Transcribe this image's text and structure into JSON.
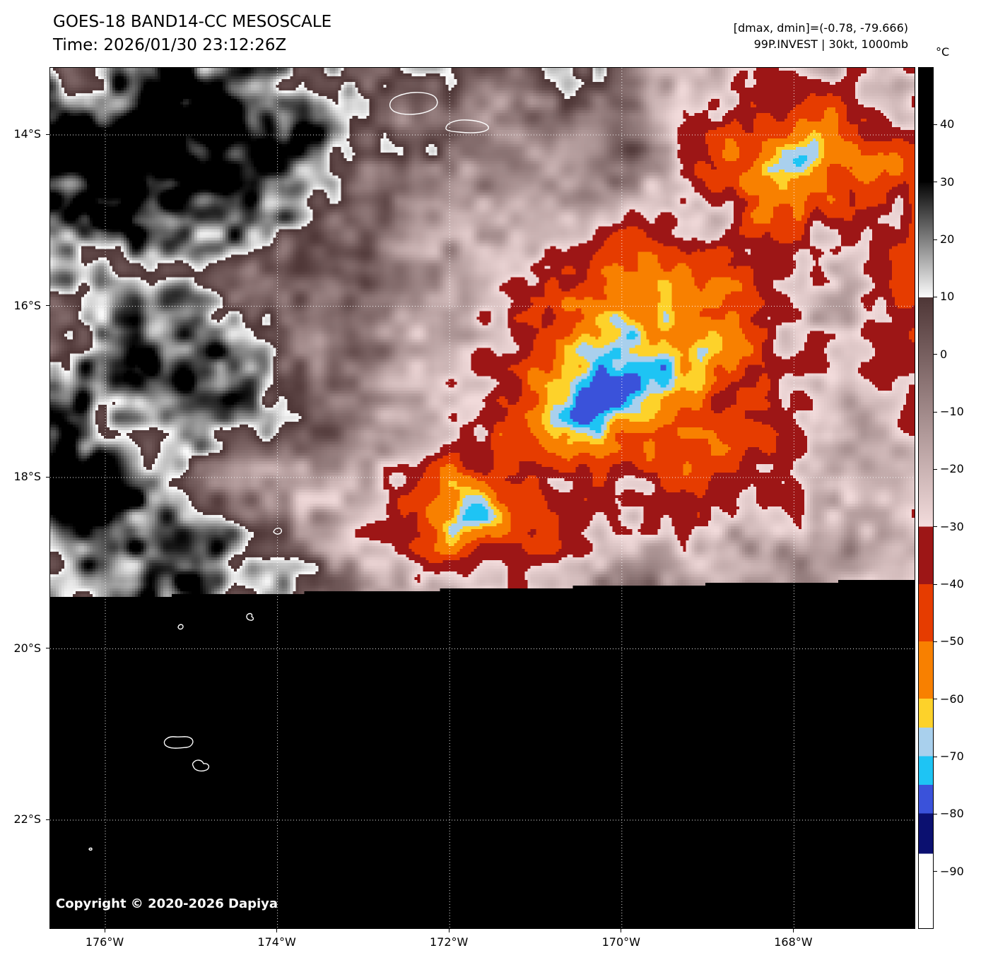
{
  "header": {
    "title": "GOES-18 BAND14-CC MESOSCALE",
    "time_line": "Time: 2026/01/30 23:12:26Z",
    "dmax_dmin": "[dmax, dmin]=(-0.78, -79.666)",
    "storm_info": "99P.INVEST | 30kt, 1000mb"
  },
  "map": {
    "copyright": "Copyright © 2020-2026 Dapiya",
    "lat_ticks": [
      {
        "label": "14°S",
        "deg": 14
      },
      {
        "label": "16°S",
        "deg": 16
      },
      {
        "label": "18°S",
        "deg": 18
      },
      {
        "label": "20°S",
        "deg": 20
      },
      {
        "label": "22°S",
        "deg": 22
      }
    ],
    "lon_ticks": [
      {
        "label": "176°W",
        "deg": 176
      },
      {
        "label": "174°W",
        "deg": 174
      },
      {
        "label": "172°W",
        "deg": 172
      },
      {
        "label": "170°W",
        "deg": 170
      },
      {
        "label": "168°W",
        "deg": 168
      }
    ]
  },
  "colorbar": {
    "unit": "°C",
    "ticks": [
      {
        "label": "40",
        "value": 40
      },
      {
        "label": "30",
        "value": 30
      },
      {
        "label": "20",
        "value": 20
      },
      {
        "label": "10",
        "value": 10
      },
      {
        "label": "0",
        "value": 0
      },
      {
        "label": "−10",
        "value": -10
      },
      {
        "label": "−20",
        "value": -20
      },
      {
        "label": "−30",
        "value": -30
      },
      {
        "label": "−40",
        "value": -40
      },
      {
        "label": "−50",
        "value": -50
      },
      {
        "label": "−60",
        "value": -60
      },
      {
        "label": "−70",
        "value": -70
      },
      {
        "label": "−80",
        "value": -80
      },
      {
        "label": "−90",
        "value": -90
      }
    ],
    "palette": [
      {
        "t0": 50,
        "t1": 30,
        "c0": "#000000",
        "c1": "#000000"
      },
      {
        "t0": 30,
        "t1": 10,
        "c0": "#050505",
        "c1": "#fbfbfb"
      },
      {
        "t0": 10,
        "t1": -30,
        "c0": "#4e3636",
        "c1": "#f3dcdc"
      },
      {
        "t0": -30,
        "t1": -40,
        "c0": "#9d1616",
        "c1": "#9d1616"
      },
      {
        "t0": -40,
        "t1": -50,
        "c0": "#e63c00",
        "c1": "#e63c00"
      },
      {
        "t0": -50,
        "t1": -60,
        "c0": "#f88000",
        "c1": "#f88000"
      },
      {
        "t0": -60,
        "t1": -65,
        "c0": "#fdd22a",
        "c1": "#fdd22a"
      },
      {
        "t0": -65,
        "t1": -70,
        "c0": "#a9d0ed",
        "c1": "#a9d0ed"
      },
      {
        "t0": -70,
        "t1": -75,
        "c0": "#1ec4f4",
        "c1": "#1ec4f4"
      },
      {
        "t0": -75,
        "t1": -80,
        "c0": "#3a52da",
        "c1": "#3a52da"
      },
      {
        "t0": -80,
        "t1": -87,
        "c0": "#0b1070",
        "c1": "#0b1070"
      },
      {
        "t0": -87,
        "t1": -100,
        "c0": "#ffffff",
        "c1": "#ffffff"
      }
    ]
  }
}
